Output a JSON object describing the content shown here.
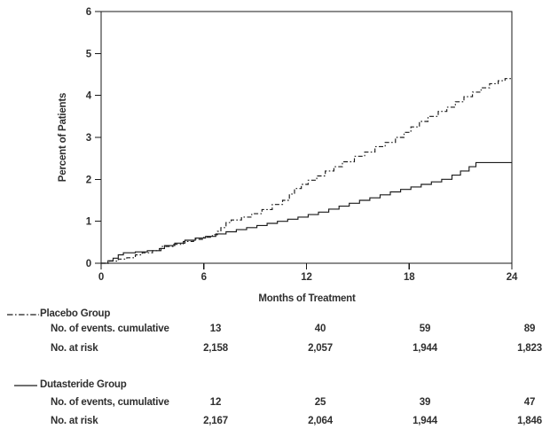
{
  "chart_data": {
    "type": "line",
    "subtype": "cumulative-incidence-step",
    "title": "",
    "xlabel": "Months of Treatment",
    "ylabel": "Percent of Patients",
    "xlim": [
      0,
      24
    ],
    "ylim": [
      0,
      6
    ],
    "x_ticks": [
      0,
      6,
      12,
      18,
      24
    ],
    "y_ticks": [
      0,
      1,
      2,
      3,
      4,
      5,
      6
    ],
    "grid": false,
    "legend_position": "below-left",
    "line_color": "#1a1a1a",
    "series": [
      {
        "name": "Placebo Group",
        "line_style": "dash-dot",
        "points": [
          [
            0,
            0
          ],
          [
            0.5,
            0.05
          ],
          [
            1.0,
            0.1
          ],
          [
            1.5,
            0.13
          ],
          [
            2.0,
            0.2
          ],
          [
            2.4,
            0.25
          ],
          [
            3.0,
            0.3
          ],
          [
            3.5,
            0.4
          ],
          [
            4.2,
            0.45
          ],
          [
            4.8,
            0.52
          ],
          [
            5.4,
            0.57
          ],
          [
            6.0,
            0.62
          ],
          [
            6.5,
            0.68
          ],
          [
            6.8,
            0.76
          ],
          [
            7.0,
            0.85
          ],
          [
            7.3,
            0.97
          ],
          [
            7.6,
            1.03
          ],
          [
            8.2,
            1.1
          ],
          [
            8.8,
            1.18
          ],
          [
            9.4,
            1.28
          ],
          [
            10.0,
            1.4
          ],
          [
            10.6,
            1.5
          ],
          [
            11.0,
            1.65
          ],
          [
            11.3,
            1.78
          ],
          [
            11.7,
            1.88
          ],
          [
            12.1,
            1.98
          ],
          [
            12.6,
            2.08
          ],
          [
            13.1,
            2.2
          ],
          [
            13.6,
            2.3
          ],
          [
            14.1,
            2.42
          ],
          [
            14.8,
            2.55
          ],
          [
            15.4,
            2.65
          ],
          [
            16.0,
            2.78
          ],
          [
            16.6,
            2.88
          ],
          [
            17.2,
            3.0
          ],
          [
            17.7,
            3.12
          ],
          [
            18.1,
            3.25
          ],
          [
            18.6,
            3.38
          ],
          [
            19.1,
            3.5
          ],
          [
            19.7,
            3.62
          ],
          [
            20.2,
            3.72
          ],
          [
            20.7,
            3.85
          ],
          [
            21.2,
            3.97
          ],
          [
            21.7,
            4.08
          ],
          [
            22.2,
            4.18
          ],
          [
            22.7,
            4.28
          ],
          [
            23.2,
            4.35
          ],
          [
            23.6,
            4.4
          ],
          [
            24,
            4.4
          ]
        ]
      },
      {
        "name": "Dutasteride Group",
        "line_style": "solid",
        "points": [
          [
            0,
            0
          ],
          [
            0.4,
            0.06
          ],
          [
            0.7,
            0.12
          ],
          [
            1.0,
            0.2
          ],
          [
            1.3,
            0.25
          ],
          [
            2.0,
            0.27
          ],
          [
            2.7,
            0.3
          ],
          [
            3.4,
            0.35
          ],
          [
            3.7,
            0.42
          ],
          [
            4.3,
            0.48
          ],
          [
            4.9,
            0.55
          ],
          [
            5.5,
            0.6
          ],
          [
            6.1,
            0.64
          ],
          [
            6.7,
            0.7
          ],
          [
            7.3,
            0.75
          ],
          [
            7.9,
            0.8
          ],
          [
            8.5,
            0.85
          ],
          [
            9.1,
            0.9
          ],
          [
            9.7,
            0.95
          ],
          [
            10.3,
            1.0
          ],
          [
            10.9,
            1.05
          ],
          [
            11.5,
            1.1
          ],
          [
            12.1,
            1.16
          ],
          [
            12.7,
            1.22
          ],
          [
            13.3,
            1.29
          ],
          [
            13.9,
            1.36
          ],
          [
            14.5,
            1.43
          ],
          [
            15.1,
            1.5
          ],
          [
            15.7,
            1.56
          ],
          [
            16.3,
            1.63
          ],
          [
            16.9,
            1.7
          ],
          [
            17.5,
            1.76
          ],
          [
            18.1,
            1.82
          ],
          [
            18.7,
            1.88
          ],
          [
            19.3,
            1.94
          ],
          [
            19.9,
            2.0
          ],
          [
            20.5,
            2.1
          ],
          [
            21.0,
            2.2
          ],
          [
            21.5,
            2.3
          ],
          [
            21.9,
            2.4
          ],
          [
            24,
            2.4
          ]
        ]
      }
    ]
  },
  "table": {
    "groups": [
      {
        "name": "Placebo Group",
        "line_style": "dash-dot",
        "rows": [
          {
            "label": "No. of events. cumulative",
            "values": [
              "13",
              "40",
              "59",
              "89"
            ]
          },
          {
            "label": "No. at risk",
            "values": [
              "2,158",
              "2,057",
              "1,944",
              "1,823"
            ]
          }
        ]
      },
      {
        "name": "Dutasteride Group",
        "line_style": "solid",
        "rows": [
          {
            "label": "No. of events, cumulative",
            "values": [
              "12",
              "25",
              "39",
              "47"
            ]
          },
          {
            "label": "No. at risk",
            "values": [
              "2,167",
              "2,064",
              "1,944",
              "1,846"
            ]
          }
        ]
      }
    ]
  }
}
